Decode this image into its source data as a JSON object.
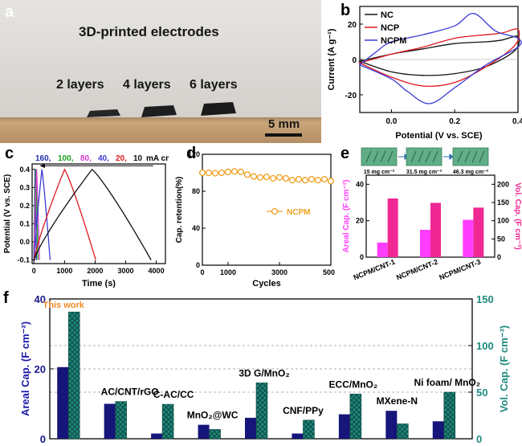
{
  "panels": {
    "a": "a",
    "b": "b",
    "c": "c",
    "d": "d",
    "e": "e",
    "f": "f"
  },
  "photo": {
    "title": "3D-printed electrodes",
    "labels": [
      "2 layers",
      "4 layers",
      "6 layers"
    ],
    "scale_bar": "5 mm",
    "colors": {
      "wall": "#dedbd6",
      "wood": "#bf9c73",
      "sample": "#202020"
    }
  },
  "chart_data": [
    {
      "id": "b",
      "type": "line",
      "xlabel": "Potential (V vs. SCE)",
      "ylabel": "Current (A g⁻¹)",
      "xlim": [
        -0.1,
        0.4
      ],
      "ylim": [
        -30,
        30
      ],
      "xticks": [
        {
          "v": 0.0,
          "t": "0.0"
        },
        {
          "v": 0.2,
          "t": "0.2"
        },
        {
          "v": 0.4,
          "t": "0.4"
        }
      ],
      "yticks": [
        {
          "v": -20,
          "t": "-20"
        },
        {
          "v": 0,
          "t": "0"
        },
        {
          "v": 20,
          "t": "20"
        }
      ],
      "legend_position": "top-left",
      "series": [
        {
          "name": "NC",
          "color": "#111111",
          "x": [
            -0.1,
            0.0,
            0.1,
            0.2,
            0.3,
            0.35,
            0.4,
            0.39,
            0.3,
            0.2,
            0.1,
            0.0,
            -0.1
          ],
          "y": [
            -1,
            3,
            6,
            9,
            10,
            11,
            13,
            5,
            -4,
            -8,
            -9,
            -7,
            -1
          ]
        },
        {
          "name": "NCP",
          "color": "#e0171e",
          "x": [
            -0.1,
            0.0,
            0.1,
            0.2,
            0.3,
            0.35,
            0.4,
            0.39,
            0.3,
            0.2,
            0.1,
            0.0,
            -0.1
          ],
          "y": [
            -2,
            3,
            7,
            12,
            14,
            15,
            17,
            8,
            -4,
            -13,
            -15,
            -10,
            -2
          ]
        },
        {
          "name": "NCPM",
          "color": "#3b3bd6",
          "x": [
            -0.1,
            -0.05,
            0.0,
            0.1,
            0.2,
            0.26,
            0.33,
            0.4,
            0.4,
            0.3,
            0.2,
            0.12,
            0.05,
            0.0,
            -0.1
          ],
          "y": [
            -3,
            4,
            10,
            14,
            19,
            26,
            16,
            12,
            7,
            -3,
            -16,
            -25,
            -18,
            -11,
            -3
          ]
        }
      ]
    },
    {
      "id": "c",
      "type": "line",
      "xlabel": "Time (s)",
      "ylabel": "Potential (V vs. SCE)",
      "xlim": [
        -60,
        4300
      ],
      "ylim": [
        -0.12,
        0.43
      ],
      "xticks": [
        {
          "v": 0,
          "t": "0"
        },
        {
          "v": 1000,
          "t": "1000"
        },
        {
          "v": 2000,
          "t": "2000"
        },
        {
          "v": 3000,
          "t": "3000"
        },
        {
          "v": 4000,
          "t": "4000"
        }
      ],
      "yticks": [
        {
          "v": -0.1,
          "t": "-0.1"
        },
        {
          "v": 0.0,
          "t": "0.0"
        },
        {
          "v": 0.1,
          "t": "0.1"
        },
        {
          "v": 0.2,
          "t": "0.2"
        },
        {
          "v": 0.3,
          "t": "0.3"
        },
        {
          "v": 0.4,
          "t": "0.4"
        }
      ],
      "legend_prefix_unit": "mA cm⁻²",
      "series": [
        {
          "name": "160",
          "color": "#1e2ea8",
          "charge_s": 38,
          "total_s": 80
        },
        {
          "name": "100",
          "color": "#1aa51a",
          "charge_s": 62,
          "total_s": 130
        },
        {
          "name": "80",
          "color": "#d63bd6",
          "charge_s": 85,
          "total_s": 180
        },
        {
          "name": "40",
          "color": "#3b3bd6",
          "charge_s": 260,
          "total_s": 530
        },
        {
          "name": "20",
          "color": "#e0171e",
          "charge_s": 1000,
          "total_s": 2020
        },
        {
          "name": "10",
          "color": "#111111",
          "charge_s": 1900,
          "total_s": 3830
        }
      ]
    },
    {
      "id": "d",
      "type": "line",
      "xlabel": "Cycles",
      "ylabel": "Cap. retention(%)",
      "xlim": [
        0,
        5000
      ],
      "ylim": [
        0,
        120
      ],
      "xticks": [
        {
          "v": 0,
          "t": "0"
        },
        {
          "v": 1000,
          "t": "1000"
        },
        {
          "v": 3000,
          "t": "3000"
        },
        {
          "v": 5000,
          "t": "5000"
        }
      ],
      "yticks": [
        {
          "v": 0,
          "t": "0"
        },
        {
          "v": 40,
          "t": "40"
        },
        {
          "v": 80,
          "t": "80"
        },
        {
          "v": 120,
          "t": "120"
        }
      ],
      "series": [
        {
          "name": "NCPM",
          "color": "#f0a020",
          "x": [
            0,
            250,
            500,
            750,
            1000,
            1250,
            1500,
            1750,
            2000,
            2250,
            2500,
            2750,
            3000,
            3250,
            3500,
            3750,
            4000,
            4250,
            4500,
            4750,
            5000
          ],
          "y": [
            100,
            100,
            99.5,
            100,
            101,
            101.5,
            101,
            98,
            96,
            95,
            95.5,
            94,
            95,
            94,
            92,
            93,
            92,
            93,
            92,
            93,
            91
          ]
        }
      ]
    },
    {
      "id": "e",
      "type": "bar",
      "categories": [
        "NCPM/CNT-1",
        "NCPM/CNT-2",
        "NCPM/CNT-3"
      ],
      "inset_labels": [
        "15 mg cm⁻²",
        "31.5 mg cm⁻²",
        "46.3 mg cm⁻²"
      ],
      "ylabel_left": "Areal Cap. (F cm⁻²)",
      "ylabel_right": "Vol. Cap. (F cm⁻³)",
      "ylim_left": [
        0,
        45
      ],
      "ylim_right": [
        0,
        225
      ],
      "yticks_left": [
        {
          "v": 0,
          "t": "0"
        },
        {
          "v": 20,
          "t": "20"
        },
        {
          "v": 40,
          "t": "40"
        }
      ],
      "yticks_right": [
        {
          "v": 0,
          "t": "0"
        },
        {
          "v": 50,
          "t": "50"
        },
        {
          "v": 100,
          "t": "100"
        },
        {
          "v": 150,
          "t": "150"
        },
        {
          "v": 200,
          "t": "200"
        }
      ],
      "series": [
        {
          "name": "Areal",
          "axis": "left",
          "color": "#ff3dff",
          "values": [
            8,
            15,
            20.5
          ]
        },
        {
          "name": "Vol",
          "axis": "right",
          "color": "#ef2894",
          "values": [
            161,
            149,
            136
          ]
        }
      ]
    },
    {
      "id": "f",
      "type": "bar",
      "categories": [
        "This work",
        "AC/CNT/rGO",
        "C-AC/CC",
        "MnO₂@WC",
        "3D G/MnO₂",
        "CNF/PPy",
        "ECC/MnO₂",
        "MXene-N",
        "Ni foam/ MnO₂"
      ],
      "highlight_color": "#f08a28",
      "ylabel_left": "Areal Cap. (F cm⁻²)",
      "ylabel_right": "Vol. Cap. (F cm⁻³)",
      "ylim_left": [
        0,
        40
      ],
      "ylim_right": [
        0,
        150
      ],
      "yticks_left": [
        {
          "v": 0,
          "t": "0"
        },
        {
          "v": 20,
          "t": "20"
        },
        {
          "v": 40,
          "t": "40"
        }
      ],
      "yticks_right": [
        {
          "v": 0,
          "t": "0"
        },
        {
          "v": 50,
          "t": "50"
        },
        {
          "v": 100,
          "t": "100"
        },
        {
          "v": 150,
          "t": "150"
        }
      ],
      "series": [
        {
          "name": "Areal",
          "axis": "left",
          "color": "#16157a",
          "values": [
            20.5,
            10,
            1.5,
            4,
            6,
            1.5,
            7,
            8,
            5
          ]
        },
        {
          "name": "Vol",
          "axis": "right",
          "color": "#1f8a7e",
          "values": [
            136,
            40,
            37,
            10,
            60,
            20,
            48,
            16,
            50
          ]
        }
      ]
    }
  ]
}
